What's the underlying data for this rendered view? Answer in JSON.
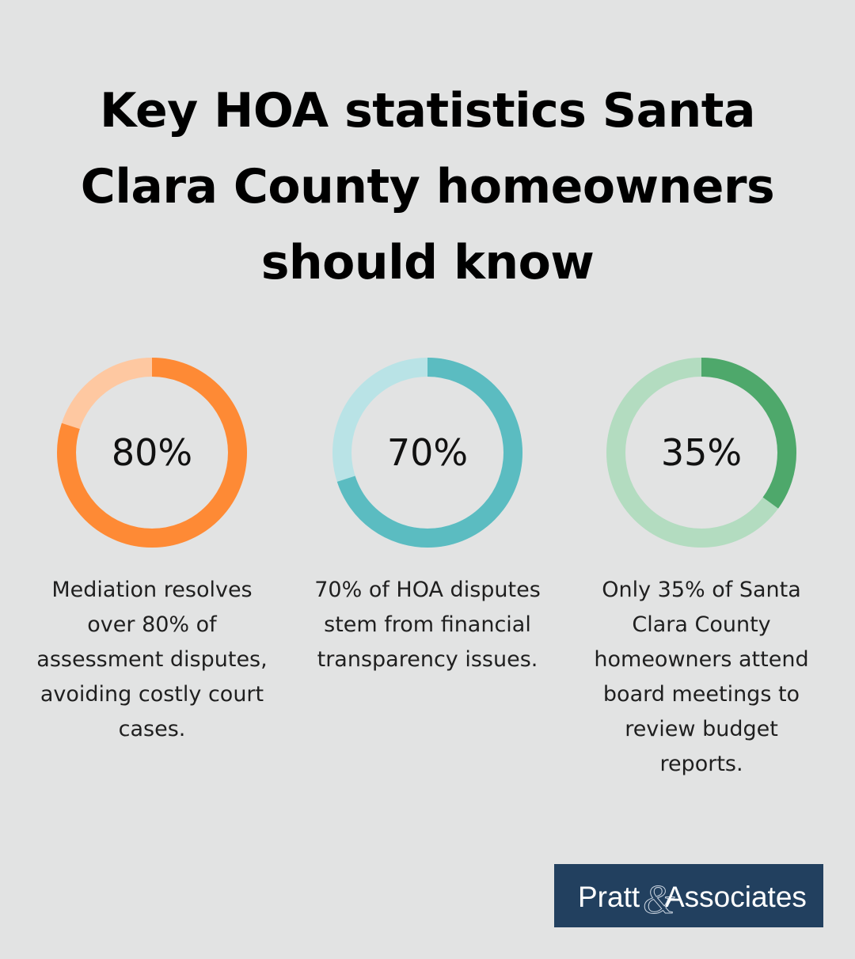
{
  "title": "Key HOA statistics Santa Clara County homeowners should know",
  "colors": {
    "background": "#e2e3e3",
    "logo_background": "#22405f"
  },
  "chart_data": [
    {
      "type": "pie",
      "value": 80,
      "max": 100,
      "label": "80%",
      "description": "Mediation resolves over 80% of assessment disputes, avoiding costly court cases.",
      "fill_color": "#fe8a35",
      "track_color": "#fec8a1"
    },
    {
      "type": "pie",
      "value": 70,
      "max": 100,
      "label": "70%",
      "description": "70% of HOA disputes stem from financial transparency issues.",
      "fill_color": "#5bbcc1",
      "track_color": "#b9e3e6"
    },
    {
      "type": "pie",
      "value": 35,
      "max": 100,
      "label": "35%",
      "description": "Only 35% of Santa Clara County homeowners attend board meetings to review budget reports.",
      "fill_color": "#4ea86b",
      "track_color": "#b3dcc0"
    }
  ],
  "logo": {
    "text_part1": "Pratt",
    "ampersand": "&",
    "text_part2": "Associates"
  }
}
